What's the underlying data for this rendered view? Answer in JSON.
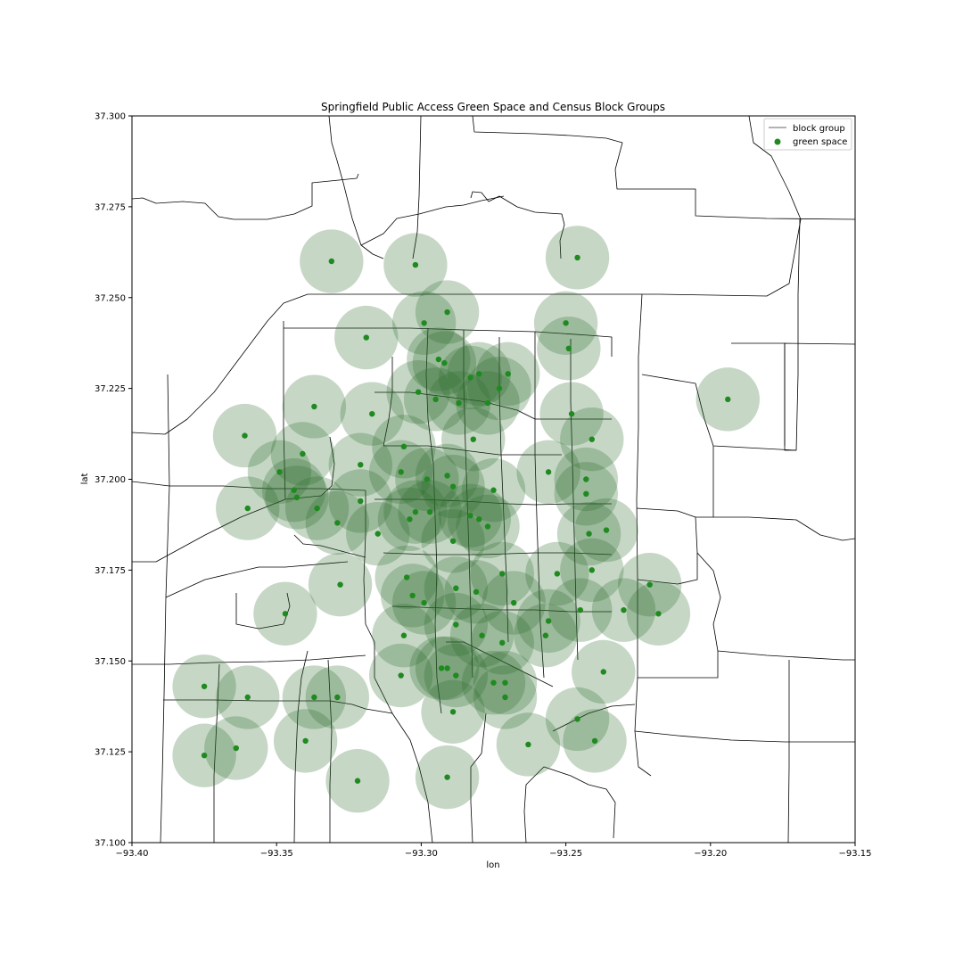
{
  "chart_data": {
    "type": "scatter",
    "title": "Springfield Public Access Green Space and Census Block Groups",
    "xlabel": "lon",
    "ylabel": "lat",
    "xlim": [
      -93.4,
      -93.15
    ],
    "ylim": [
      37.1,
      37.3
    ],
    "x_ticks": [
      -93.4,
      -93.35,
      -93.3,
      -93.25,
      -93.2,
      -93.15
    ],
    "x_tick_labels": [
      "−93.40",
      "−93.35",
      "−93.30",
      "−93.25",
      "−93.20",
      "−93.15"
    ],
    "y_ticks": [
      37.1,
      37.125,
      37.15,
      37.175,
      37.2,
      37.225,
      37.25,
      37.275,
      37.3
    ],
    "y_tick_labels": [
      "37.100",
      "37.125",
      "37.150",
      "37.175",
      "37.200",
      "37.225",
      "37.250",
      "37.275",
      "37.300"
    ],
    "grid": false,
    "legend_position": "top-right",
    "legend": [
      {
        "label": "block group",
        "marker": "line",
        "color": "#333333"
      },
      {
        "label": "green space",
        "marker": "dot",
        "color": "#228b22"
      }
    ],
    "colors": {
      "point": "#1f8a1f",
      "buffer": "#2e6b2e"
    },
    "buffer_radius_deg": 0.011,
    "points": [
      [
        -93.331,
        37.26
      ],
      [
        -93.302,
        37.259
      ],
      [
        -93.246,
        37.261
      ],
      [
        -93.291,
        37.246
      ],
      [
        -93.25,
        37.243
      ],
      [
        -93.299,
        37.243
      ],
      [
        -93.319,
        37.239
      ],
      [
        -93.249,
        37.236
      ],
      [
        -93.292,
        37.232
      ],
      [
        -93.294,
        37.233
      ],
      [
        -93.27,
        37.229
      ],
      [
        -93.28,
        37.229
      ],
      [
        -93.283,
        37.228
      ],
      [
        -93.273,
        37.225
      ],
      [
        -93.301,
        37.224
      ],
      [
        -93.295,
        37.222
      ],
      [
        -93.287,
        37.221
      ],
      [
        -93.277,
        37.221
      ],
      [
        -93.337,
        37.22
      ],
      [
        -93.317,
        37.218
      ],
      [
        -93.248,
        37.218
      ],
      [
        -93.194,
        37.222
      ],
      [
        -93.361,
        37.212
      ],
      [
        -93.241,
        37.211
      ],
      [
        -93.282,
        37.211
      ],
      [
        -93.306,
        37.209
      ],
      [
        -93.341,
        37.207
      ],
      [
        -93.321,
        37.204
      ],
      [
        -93.349,
        37.202
      ],
      [
        -93.307,
        37.202
      ],
      [
        -93.291,
        37.201
      ],
      [
        -93.256,
        37.202
      ],
      [
        -93.298,
        37.2
      ],
      [
        -93.243,
        37.2
      ],
      [
        -93.289,
        37.198
      ],
      [
        -93.344,
        37.197
      ],
      [
        -93.275,
        37.197
      ],
      [
        -93.243,
        37.196
      ],
      [
        -93.343,
        37.195
      ],
      [
        -93.321,
        37.194
      ],
      [
        -93.36,
        37.192
      ],
      [
        -93.336,
        37.192
      ],
      [
        -93.297,
        37.191
      ],
      [
        -93.302,
        37.191
      ],
      [
        -93.283,
        37.19
      ],
      [
        -93.304,
        37.189
      ],
      [
        -93.28,
        37.189
      ],
      [
        -93.329,
        37.188
      ],
      [
        -93.277,
        37.187
      ],
      [
        -93.236,
        37.186
      ],
      [
        -93.315,
        37.185
      ],
      [
        -93.242,
        37.185
      ],
      [
        -93.289,
        37.183
      ],
      [
        -93.241,
        37.175
      ],
      [
        -93.253,
        37.174
      ],
      [
        -93.272,
        37.174
      ],
      [
        -93.305,
        37.173
      ],
      [
        -93.328,
        37.171
      ],
      [
        -93.221,
        37.171
      ],
      [
        -93.288,
        37.17
      ],
      [
        -93.281,
        37.169
      ],
      [
        -93.303,
        37.168
      ],
      [
        -93.299,
        37.166
      ],
      [
        -93.268,
        37.166
      ],
      [
        -93.245,
        37.164
      ],
      [
        -93.23,
        37.164
      ],
      [
        -93.347,
        37.163
      ],
      [
        -93.218,
        37.163
      ],
      [
        -93.256,
        37.161
      ],
      [
        -93.288,
        37.16
      ],
      [
        -93.257,
        37.157
      ],
      [
        -93.306,
        37.157
      ],
      [
        -93.279,
        37.157
      ],
      [
        -93.272,
        37.155
      ],
      [
        -93.291,
        37.148
      ],
      [
        -93.293,
        37.148
      ],
      [
        -93.288,
        37.146
      ],
      [
        -93.307,
        37.146
      ],
      [
        -93.237,
        37.147
      ],
      [
        -93.375,
        37.143
      ],
      [
        -93.275,
        37.144
      ],
      [
        -93.271,
        37.144
      ],
      [
        -93.36,
        37.14
      ],
      [
        -93.337,
        37.14
      ],
      [
        -93.329,
        37.14
      ],
      [
        -93.271,
        37.14
      ],
      [
        -93.289,
        37.136
      ],
      [
        -93.246,
        37.134
      ],
      [
        -93.34,
        37.128
      ],
      [
        -93.24,
        37.128
      ],
      [
        -93.263,
        37.127
      ],
      [
        -93.364,
        37.126
      ],
      [
        -93.375,
        37.124
      ],
      [
        -93.322,
        37.117
      ],
      [
        -93.291,
        37.118
      ]
    ]
  }
}
